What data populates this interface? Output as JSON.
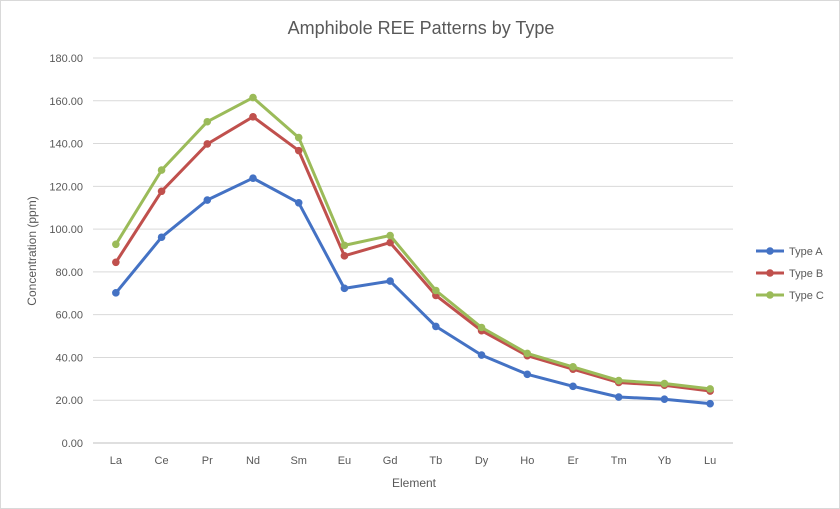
{
  "chart_data": {
    "type": "line",
    "title": "Amphibole REE Patterns by Type",
    "xlabel": "Element",
    "ylabel": "Concentration (ppm)",
    "ylim": [
      0,
      180
    ],
    "y_ticks": [
      "0.00",
      "20.00",
      "40.00",
      "60.00",
      "80.00",
      "100.00",
      "120.00",
      "140.00",
      "160.00",
      "180.00"
    ],
    "grid": "horizontal",
    "legend_position": "right",
    "categories": [
      "La",
      "Ce",
      "Pr",
      "Nd",
      "Sm",
      "Eu",
      "Gd",
      "Tb",
      "Dy",
      "Ho",
      "Er",
      "Tm",
      "Yb",
      "Lu"
    ],
    "series": [
      {
        "name": "Type A",
        "color": "#4472c4",
        "values": [
          70.2,
          96.2,
          113.6,
          123.8,
          112.3,
          72.3,
          75.7,
          54.5,
          41.1,
          32.1,
          26.5,
          21.5,
          20.5,
          18.4
        ]
      },
      {
        "name": "Type B",
        "color": "#c0504d",
        "values": [
          84.5,
          117.7,
          139.8,
          152.5,
          136.7,
          87.5,
          93.7,
          69.0,
          52.5,
          40.8,
          34.5,
          28.3,
          27.0,
          24.3
        ]
      },
      {
        "name": "Type C",
        "color": "#9bbb59",
        "values": [
          92.9,
          127.6,
          150.2,
          161.5,
          142.8,
          92.4,
          97.0,
          71.3,
          54.0,
          41.9,
          35.6,
          29.2,
          27.8,
          25.3
        ]
      }
    ]
  }
}
